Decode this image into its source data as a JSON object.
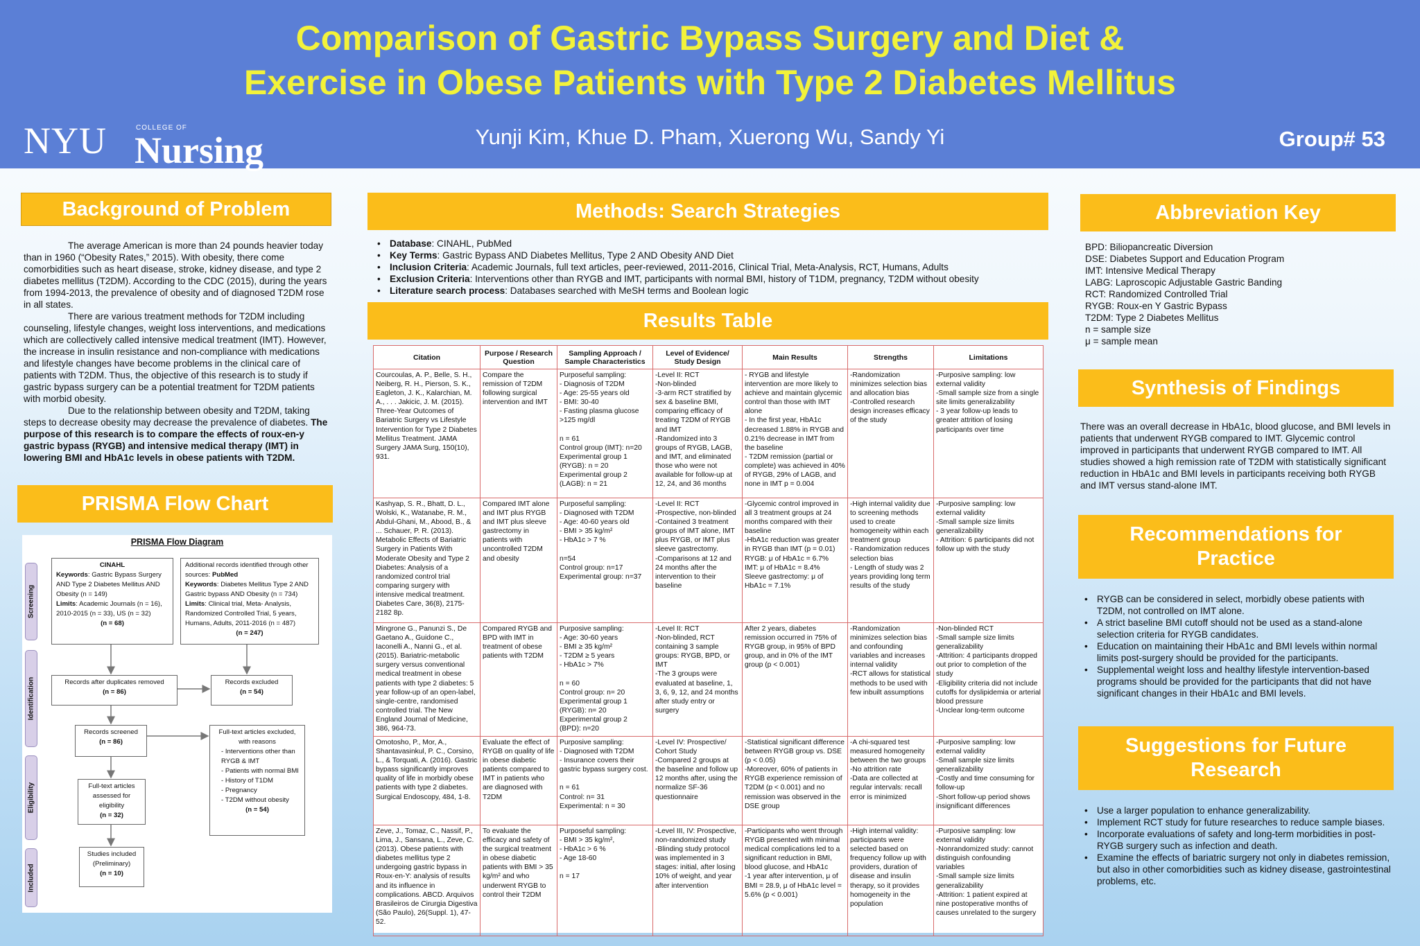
{
  "header": {
    "title_line1": "Comparison of Gastric Bypass Surgery and Diet &",
    "title_line2": "Exercise in Obese Patients with Type 2 Diabetes Mellitus",
    "logo_nyu": "NYU",
    "logo_college": "COLLEGE OF",
    "logo_nursing": "Nursing",
    "authors": "Yunji Kim, Khue D. Pham, Xuerong Wu, Sandy Yi",
    "group": "Group# 53"
  },
  "colors": {
    "header_bg": "#5b7fd6",
    "title": "#f2f23a",
    "section_head": "#fbbd1a",
    "table_border": "#d86a6a"
  },
  "background": {
    "heading": "Background of Problem",
    "p1": "The average American is more than 24 pounds heavier today than in 1960 (“Obesity Rates,” 2015). With obesity, there come comorbidities such as heart disease, stroke, kidney disease, and type 2 diabetes mellitus (T2DM). According to the CDC (2015), during the years from 1994-2013, the prevalence of obesity and of diagnosed T2DM rose in all states.",
    "p2": "There are various treatment methods for T2DM including counseling, lifestyle changes, weight loss interventions, and medications which are collectively called intensive medical treatment (IMT). However, the increase in insulin resistance and non-compliance with medications and lifestyle changes have become problems in the clinical care of patients with T2DM. Thus, the objective of this research is to study if gastric bypass surgery can be a potential treatment for T2DM patients with morbid obesity.",
    "p3": "Due to the relationship between obesity and T2DM, taking steps to decrease obesity may decrease the prevalence of diabetes.",
    "p3_bold": "The purpose of this research is to compare the effects of roux-en-y gastric bypass (RYGB) and intensive medical therapy (IMT) in lowering BMI and HbA1c levels in obese patients with T2DM."
  },
  "prisma": {
    "heading": "PRISMA Flow Chart",
    "diagram_title": "PRISMA Flow Diagram",
    "stages": [
      "Screening",
      "Identification",
      "Eligibility",
      "Included"
    ],
    "cinahl_title": "CINAHL",
    "cinahl_kw_label": "Keywords",
    "cinahl_kw": ": Gastric Bypass Surgery AND Type 2 Diabetes Mellitus AND Obesity (n = 149)",
    "cinahl_lim_label": "Limits",
    "cinahl_lim": ": Academic Journals (n = 16), 2010-2015 (n = 33), US (n = 32)",
    "cinahl_n": "(n = 68)",
    "other_intro": "Additional records identified through other sources: ",
    "other_src": "PubMed",
    "other_kw_label": "Keywords",
    "other_kw": ": Diabetes Mellitus Type 2 AND Gastric bypass AND Obesity (n = 734)",
    "other_lim_label": "Limits",
    "other_lim": ": Clinical trial, Meta- Analysis, Randomized Controlled Trial, 5 years, Humans, Adults, 2011-2016 (n = 487)",
    "other_n": "(n = 247)",
    "dup_label": "Records after duplicates removed",
    "dup_n": "(n = 86)",
    "excl_label": "Records excluded",
    "excl_n": "(n = 54)",
    "screened_label": "Records screened",
    "screened_n": "(n = 86)",
    "fulltext_excl_label": "Full-text articles excluded, with reasons",
    "fulltext_reasons": [
      "Interventions other than RYGB & IMT",
      "Patients with normal BMI",
      "History of T1DM",
      "Pregnancy",
      "T2DM without obesity"
    ],
    "fulltext_excl_n": "(n = 54)",
    "assessed_label": "Full-text articles assessed for eligibility",
    "assessed_n": "(n = 32)",
    "included_label": "Studies included (Preliminary)",
    "included_n": "(n = 10)"
  },
  "methods": {
    "heading": "Methods: Search Strategies",
    "items": [
      {
        "label": "Database",
        "text": ": CINAHL, PubMed"
      },
      {
        "label": "Key Terms",
        "text": ": Gastric Bypass AND Diabetes Mellitus, Type 2 AND Obesity AND Diet"
      },
      {
        "label": "Inclusion Criteria",
        "text": ": Academic Journals, full text articles, peer-reviewed, 2011-2016, Clinical Trial, Meta-Analysis, RCT, Humans, Adults"
      },
      {
        "label": "Exclusion Criteria",
        "text": ": Interventions other than RYGB and IMT, participants with normal BMI, history of T1DM, pregnancy, T2DM without obesity"
      },
      {
        "label": "Literature search process",
        "text": ": Databases searched with MeSH terms and Boolean logic"
      }
    ]
  },
  "results": {
    "heading": "Results Table",
    "columns": [
      "Citation",
      "Purpose / Research Question",
      "Sampling Approach / Sample Characteristics",
      "Level of Evidence/ Study Design",
      "Main Results",
      "Strengths",
      "Limitations"
    ],
    "rows": [
      [
        "Courcoulas, A. P., Belle, S. H., Neiberg, R. H., Pierson, S. K., Eagleton, J. K., Kalarchian, M. A., . . . Jakicic, J. M. (2015). Three-Year Outcomes of Bariatric Surgery vs Lifestyle Intervention for Type 2 Diabetes Mellitus Treatment. JAMA Surgery JAMA Surg, 150(10), 931.",
        "Compare the remission of T2DM following surgical intervention and IMT",
        "Purposeful sampling:\n- Diagnosis of T2DM\n- Age: 25-55 years old\n- BMI: 30-40\n- Fasting plasma glucose >125 mg/dl\n\nn = 61\nControl group (IMT): n=20\nExperimental group 1 (RYGB): n = 20\nExperimental group 2 (LAGB): n = 21",
        "-Level II: RCT\n-Non-blinded\n-3-arm RCT stratified by sex & baseline BMI, comparing efficacy of treating T2DM of RYGB and IMT\n-Randomized into 3 groups of RYGB, LAGB, and IMT, and eliminated those who were not available for follow-up at 12, 24, and 36 months",
        "- RYGB and lifestyle intervention are more likely to achieve and maintain glycemic control than those with IMT alone\n- In the first year, HbA1c decreased 1.88% in RYGB and 0.21% decrease in IMT from the baseline\n- T2DM remission (partial or complete) was achieved in 40% of RYGB, 29% of LAGB, and none in IMT p = 0.004",
        "-Randomization minimizes selection bias and allocation bias\n-Controlled research design increases efficacy of the study",
        "-Purposive sampling: low external validity\n-Small sample size from a single site limits generalizability\n- 3 year follow-up leads to greater attrition of losing participants over time"
      ],
      [
        "Kashyap, S. R., Bhatt, D. L., Wolski, K., Watanabe, R. M., Abdul-Ghani, M., Abood, B., & ... Schauer, P. R. (2013). Metabolic Effects of Bariatric Surgery in Patients With Moderate Obesity and Type 2 Diabetes: Analysis of a randomized control trial comparing surgery with intensive medical treatment. Diabetes Care, 36(8), 2175-2182 8p.",
        "Compared IMT alone and IMT plus RYGB and IMT plus sleeve gastrectomy in patients with uncontrolled T2DM and obesity",
        "Purposeful sampling:\n- Diagnosed with T2DM\n- Age: 40-60 years old\n- BMI > 35 kg/m²\n- HbA1c > 7 %\n\nn=54\nControl group: n=17\nExperimental group: n=37",
        "-Level II: RCT\n-Prospective, non-blinded\n-Contained 3 treatment groups of IMT alone, IMT plus RYGB, or IMT plus sleeve gastrectomy.\n-Comparisons at 12 and 24 months after the intervention to their baseline",
        "-Glycemic control improved in all 3 treatment groups at 24 months compared with their baseline\n-HbA1c reduction was greater in RYGB than IMT (p = 0.01)\nRYGB: μ of HbA1c = 6.7%\nIMT: μ of HbA1c = 8.4%\nSleeve gastrectomy: μ of HbA1c = 7.1%",
        "-High internal validity due to screening methods used to create homogeneity within each treatment group\n- Randomization reduces selection bias\n- Length of study was 2 years providing long term results of the study",
        "-Purposive sampling: low external validity\n-Small sample size limits generalizability\n- Attrition: 6 participants did not follow up with the study"
      ],
      [
        "Mingrone G., Panunzi S., De Gaetano A., Guidone C., Iaconelli A., Nanni G., et al. (2015). Bariatric-metabolic surgery versus conventional medical treatment in obese patients with type 2 diabetes: 5 year follow-up of an open-label, single-centre, randomised controlled trial. The New England Journal of Medicine, 386, 964-73.",
        "Compared RYGB and BPD with IMT in treatment of obese patients with T2DM",
        "Purposive sampling:\n- Age: 30-60 years\n- BMI ≥ 35 kg/m²\n- T2DM ≥ 5 years\n- HbA1c > 7%\n\nn = 60\nControl group: n= 20\nExperimental group 1 (RYGB): n= 20\nExperimental group 2 (BPD): n=20",
        "-Level II: RCT\n-Non-blinded, RCT containing 3 sample groups: RYGB, BPD, or IMT\n-The 3 groups were evaluated at baseline, 1, 3, 6, 9, 12, and 24 months after study entry or surgery",
        "After 2 years, diabetes remission occurred in 75% of RYGB group, in 95% of BPD group, and in 0% of the IMT group (p < 0.001)",
        "-Randomization minimizes selection bias and confounding variables and increases internal validity\n-RCT allows for statistical methods to be used with few inbuilt assumptions",
        "-Non-blinded RCT\n-Small sample size limits generalizability\n-Attrition: 4 participants dropped out prior to completion of the study\n-Eligibility criteria did not include cutoffs for dyslipidemia or arterial blood pressure\n-Unclear long-term outcome"
      ],
      [
        "Omotosho, P., Mor, A., Shantavasinkul, P. C., Corsino, L., & Torquati, A. (2016). Gastric bypass significantly improves quality of life in morbidly obese patients with type 2 diabetes. Surgical Endoscopy, 484, 1-8.",
        "Evaluate the effect of RYGB on quality of life in obese diabetic patients compared to IMT in patients who are diagnosed with T2DM",
        "Purposive sampling:\n- Diagnosed with T2DM\n- Insurance covers their gastric bypass surgery cost.\n\nn = 61\nControl: n= 31\nExperimental: n = 30",
        "-Level IV: Prospective/ Cohort Study\n-Compared 2 groups at the baseline and follow up 12 months after, using the normalize SF-36 questionnaire",
        "-Statistical significant difference between RYGB group vs. DSE (p < 0.05)\n-Moreover, 60% of patients in RYGB experience remission of T2DM (p < 0.001) and no remission was observed in the DSE group",
        "-A chi-squared test measured homogeneity between the two groups\n-No attrition rate\n-Data are collected at regular intervals: recall error is minimized",
        "-Purposive sampling: low external validity\n-Small sample size limits generalizability\n-Costly and time consuming for follow-up\n-Short follow-up period shows insignificant differences"
      ],
      [
        "Zeve, J., Tomaz, C., Nassif, P., Lima, J., Sansana, L., Zeve, C. (2013). Obese patients with diabetes mellitus type 2 undergoing gastric bypass in Roux-en-Y: analysis of results and its influence in complications. ABCD. Arquivos Brasileiros de Cirurgia Digestiva (São Paulo), 26(Suppl. 1), 47-52.",
        "To evaluate the efficacy and safety of the surgical treatment in obese diabetic patients with BMI > 35 kg/m² and who underwent RYGB to control their T2DM",
        "Purposeful sampling:\n- BMI > 35 kg/m²,\n- HbA1c > 6 %\n- Age 18-60\n\nn = 17",
        "-Level III, IV: Prospective, non-randomized study\n-Blinding study protocol was implemented in 3 stages: initial, after losing 10% of weight, and year after intervention",
        "-Participants who went through RYGB presented with minimal medical complications led to a significant reduction in BMI, blood glucose, and HbA1c\n-1 year after intervention, μ of BMI = 28.9, μ of HbA1c level = 5.6% (p < 0.001)",
        "-High internal validity: participants were selected based on frequency follow up with providers, duration of disease and insulin therapy, so it provides homogeneity in the population",
        "-Purposive sampling: low external validity\n-Nonrandomized study: cannot distinguish confounding variables\n-Small sample size limits generalizability\n-Attrition: 1 patient expired at nine postoperative months of causes unrelated to the surgery"
      ]
    ]
  },
  "abbreviations": {
    "heading": "Abbreviation Key",
    "items": [
      "BPD: Biliopancreatic Diversion",
      "DSE: Diabetes Support and Education Program",
      "IMT: Intensive Medical Therapy",
      "LABG: Laproscopic Adjustable Gastric Banding",
      "RCT: Randomized Controlled Trial",
      "RYGB: Roux-en Y Gastric Bypass",
      "T2DM: Type 2 Diabetes Mellitus",
      "n = sample size",
      "μ  = sample mean"
    ]
  },
  "synthesis": {
    "heading": "Synthesis of Findings",
    "text": "There was an overall decrease in HbA1c, blood glucose, and BMI levels in patients that underwent RYGB compared to IMT. Glycemic control improved in participants that underwent RYGB compared to IMT. All studies showed a high remission rate of T2DM with statistically significant reduction in HbA1c and BMI levels in participants receiving both RYGB and IMT versus stand-alone IMT."
  },
  "recommendations": {
    "heading": "Recommendations for Practice",
    "items": [
      "RYGB can be considered in select, morbidly obese patients with T2DM, not controlled on IMT alone.",
      "A strict baseline BMI cutoff should not be used as a stand-alone selection criteria for RYGB candidates.",
      "Education on maintaining their HbA1c and BMI levels within normal limits post-surgery should be provided for the participants.",
      "Supplemental weight loss and healthy lifestyle intervention-based programs should be provided for the participants that did not have significant changes in their HbA1c and BMI levels."
    ]
  },
  "future": {
    "heading": "Suggestions for Future Research",
    "items": [
      "Use a larger population to enhance generalizability.",
      "Implement RCT study for future researches to reduce sample biases.",
      "Incorporate evaluations of safety and long-term morbidities in post-RYGB surgery such as infection and death.",
      "Examine the effects of bariatric surgery not only in diabetes remission, but also in other comorbidities such as kidney disease, gastrointestinal problems, etc."
    ]
  }
}
